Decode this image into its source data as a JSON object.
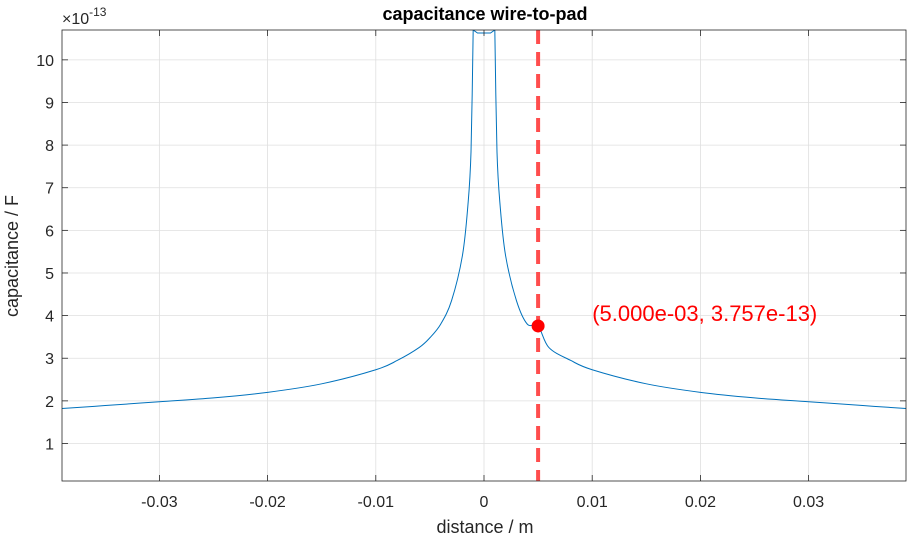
{
  "chart_data": {
    "type": "line",
    "title": "capacitance wire-to-pad",
    "xlabel": "distance / m",
    "ylabel": "capacitance / F",
    "y_exponent_label": "×10",
    "y_exponent_power": "-13",
    "y_scale_factor": 1e-13,
    "xlim": [
      -0.039,
      0.039
    ],
    "ylim": [
      0.12,
      10.7
    ],
    "grid": true,
    "x_ticks": [
      -0.03,
      -0.02,
      -0.01,
      0,
      0.01,
      0.02,
      0.03
    ],
    "x_tick_labels": [
      "-0.03",
      "-0.02",
      "-0.01",
      "0",
      "0.01",
      "0.02",
      "0.03"
    ],
    "y_ticks": [
      1,
      2,
      3,
      4,
      5,
      6,
      7,
      8,
      9,
      10
    ],
    "y_tick_labels": [
      "1",
      "2",
      "3",
      "4",
      "5",
      "6",
      "7",
      "8",
      "9",
      "10"
    ],
    "series": [
      {
        "color": "#0072bd",
        "x": [
          -0.039,
          -0.035,
          -0.03,
          -0.025,
          -0.02,
          -0.015,
          -0.01,
          -0.008,
          -0.006,
          -0.005,
          -0.004,
          -0.003,
          -0.002,
          -0.0015,
          -0.0012,
          -0.001,
          0.001,
          0.0012,
          0.0015,
          0.002,
          0.003,
          0.004,
          0.005,
          0.006,
          0.008,
          0.01,
          0.015,
          0.02,
          0.025,
          0.03,
          0.035,
          0.039
        ],
        "y": [
          1.82,
          1.89,
          1.98,
          2.07,
          2.2,
          2.4,
          2.73,
          2.95,
          3.25,
          3.48,
          3.8,
          4.35,
          5.4,
          6.55,
          7.85,
          10.7,
          10.7,
          7.85,
          6.55,
          5.4,
          4.35,
          3.8,
          3.757,
          3.25,
          2.95,
          2.73,
          2.4,
          2.2,
          2.07,
          1.98,
          1.89,
          1.82
        ]
      }
    ],
    "marker_line": {
      "x": 0.005,
      "color": "#ff4d4d",
      "style": "dashed"
    },
    "marker_point": {
      "x": 0.005,
      "y": 3.757,
      "color": "#ff0000"
    },
    "annotation": {
      "text": "(5.000e-03, 3.757e-13)",
      "x": 0.01,
      "y": 3.757,
      "color": "#ff0000"
    }
  }
}
